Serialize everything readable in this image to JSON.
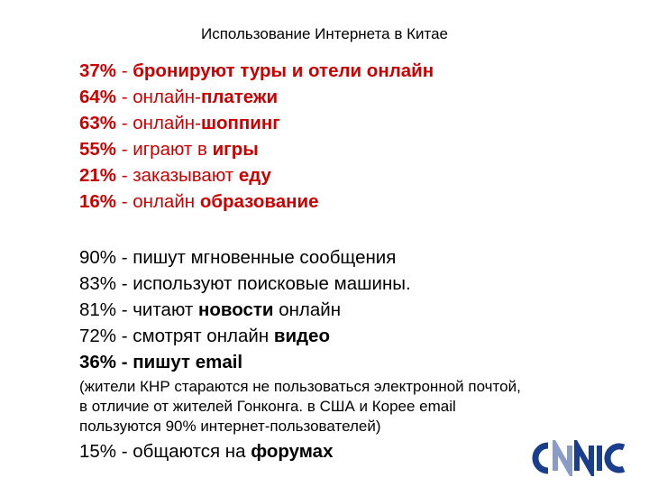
{
  "title": "Использование Интернета в Китае",
  "red_block": [
    {
      "pct": "37%",
      "sep": " - ",
      "text": "бронируют туры и отели онлайн",
      "bold": ""
    },
    {
      "pct": "64%",
      "sep": " - ",
      "text": "онлайн-",
      "bold": "платежи"
    },
    {
      "pct": "63%",
      "sep": " - ",
      "text": "онлайн-",
      "bold": "шоппинг"
    },
    {
      "pct": "55%",
      "sep": " - ",
      "text": "играют в ",
      "bold": "игры"
    },
    {
      "pct": "21%",
      "sep": " - ",
      "text": "заказывают ",
      "bold": "еду"
    },
    {
      "pct": "16%",
      "sep": " - ",
      "text": "онлайн ",
      "bold": "образование"
    }
  ],
  "black_block": [
    {
      "pct": "90%",
      "sep": " - ",
      "text": "пишут мгновенные сообщения",
      "bold": "",
      "tail": ""
    },
    {
      "pct": "83%",
      "sep": " - ",
      "text": "используют поисковые машины.",
      "bold": "",
      "tail": ""
    },
    {
      "pct": "81%",
      "sep": " - ",
      "text": "читают ",
      "bold": "новости",
      "tail": " онлайн"
    },
    {
      "pct": "72%",
      "sep": " - ",
      "text": "смотрят онлайн ",
      "bold": "видео",
      "tail": ""
    },
    {
      "pct": "36%",
      "sep": " - ",
      "text": "",
      "bold": "пишут email",
      "tail": ""
    }
  ],
  "note": [
    "(жители КНР стараются не пользоваться электронной почтой,",
    "в отличие от жителей Гонконга. в США и Корее email",
    "пользуются  90% интернет-пользователей)"
  ],
  "last_line": {
    "pct": "15%",
    "sep": " - ",
    "text": "общаются на ",
    "bold": "форумах"
  },
  "logo": {
    "text": "CNNIC",
    "color": "#1a3d8c",
    "accent": "#8a9bc8"
  }
}
